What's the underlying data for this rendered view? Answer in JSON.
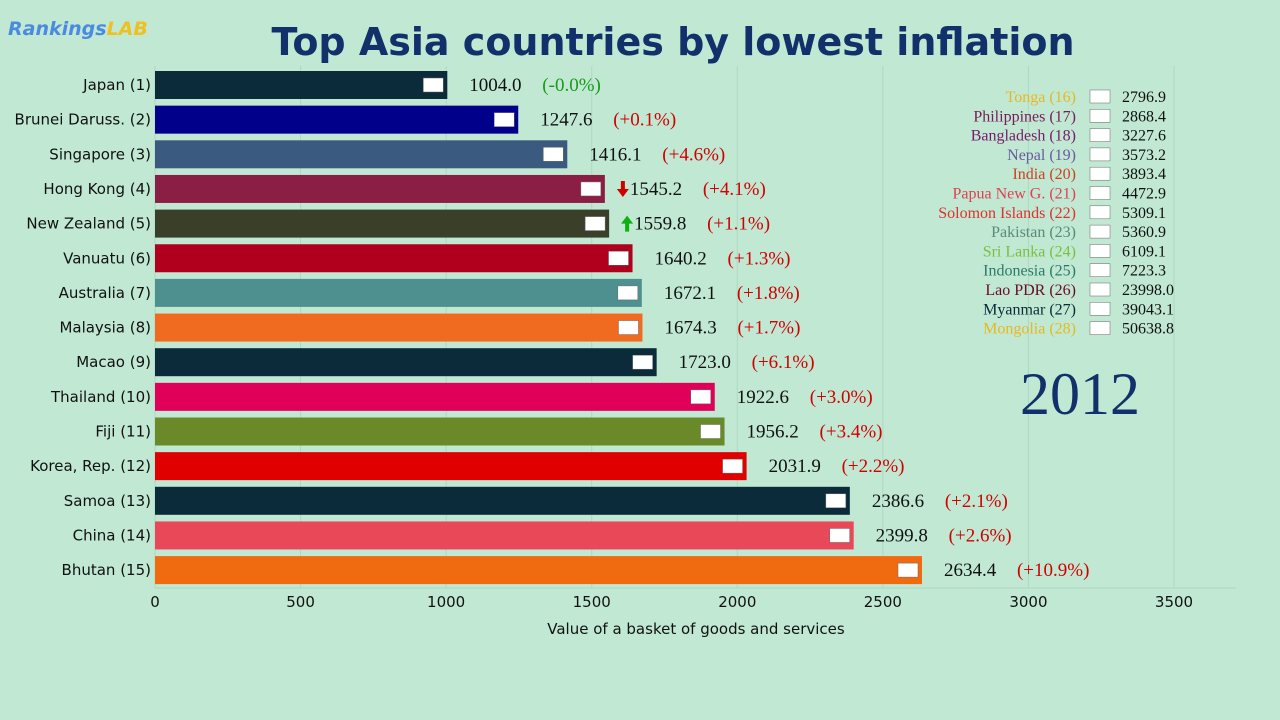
{
  "logo": {
    "part1": "Rankings",
    "part2": "LAB"
  },
  "chart_data": {
    "type": "bar",
    "orientation": "horizontal",
    "title": "Top Asia countries by lowest inflation",
    "xlabel": "Value of a basket of goods and services",
    "xlim": [
      0,
      3700
    ],
    "xticks": [
      0,
      500,
      1000,
      1500,
      2000,
      2500,
      3000,
      3500
    ],
    "grid": true,
    "year": "2012",
    "bars": [
      {
        "label": "Japan (1)",
        "value": 1004.0,
        "change": "(-0.0%)",
        "change_color": "#1a9a1a",
        "color": "#0b2a3a",
        "arrow": ""
      },
      {
        "label": "Brunei Daruss. (2)",
        "value": 1247.6,
        "change": "(+0.1%)",
        "change_color": "#d00000",
        "color": "#00008b",
        "arrow": ""
      },
      {
        "label": "Singapore (3)",
        "value": 1416.1,
        "change": "(+4.6%)",
        "change_color": "#d00000",
        "color": "#3a5a80",
        "arrow": ""
      },
      {
        "label": "Hong Kong (4)",
        "value": 1545.2,
        "change": "(+4.1%)",
        "change_color": "#d00000",
        "color": "#8b1e45",
        "arrow": "down"
      },
      {
        "label": "New Zealand (5)",
        "value": 1559.8,
        "change": "(+1.1%)",
        "change_color": "#d00000",
        "color": "#3a3f2a",
        "arrow": "up"
      },
      {
        "label": "Vanuatu (6)",
        "value": 1640.2,
        "change": "(+1.3%)",
        "change_color": "#d00000",
        "color": "#b0001e",
        "arrow": ""
      },
      {
        "label": "Australia (7)",
        "value": 1672.1,
        "change": "(+1.8%)",
        "change_color": "#d00000",
        "color": "#4e9090",
        "arrow": ""
      },
      {
        "label": "Malaysia (8)",
        "value": 1674.3,
        "change": "(+1.7%)",
        "change_color": "#d00000",
        "color": "#f06a20",
        "arrow": ""
      },
      {
        "label": "Macao (9)",
        "value": 1723.0,
        "change": "(+6.1%)",
        "change_color": "#d00000",
        "color": "#0b2a3a",
        "arrow": ""
      },
      {
        "label": "Thailand (10)",
        "value": 1922.6,
        "change": "(+3.0%)",
        "change_color": "#d00000",
        "color": "#e0005a",
        "arrow": ""
      },
      {
        "label": "Fiji (11)",
        "value": 1956.2,
        "change": "(+3.4%)",
        "change_color": "#d00000",
        "color": "#6a8a2a",
        "arrow": ""
      },
      {
        "label": "Korea, Rep. (12)",
        "value": 2031.9,
        "change": "(+2.2%)",
        "change_color": "#d00000",
        "color": "#e00000",
        "arrow": ""
      },
      {
        "label": "Samoa (13)",
        "value": 2386.6,
        "change": "(+2.1%)",
        "change_color": "#d00000",
        "color": "#0b2a3a",
        "arrow": ""
      },
      {
        "label": "China (14)",
        "value": 2399.8,
        "change": "(+2.6%)",
        "change_color": "#d00000",
        "color": "#e84858",
        "arrow": ""
      },
      {
        "label": "Bhutan (15)",
        "value": 2634.4,
        "change": "(+10.9%)",
        "change_color": "#d00000",
        "color": "#f06a10",
        "arrow": ""
      }
    ],
    "legend": [
      {
        "label": "Tonga (16)",
        "value": "2796.9",
        "color": "#e8b820"
      },
      {
        "label": "Philippines (17)",
        "value": "2868.4",
        "color": "#7a1a5a"
      },
      {
        "label": "Bangladesh (18)",
        "value": "3227.6",
        "color": "#7a1a6a"
      },
      {
        "label": "Nepal (19)",
        "value": "3573.2",
        "color": "#6a5aa0"
      },
      {
        "label": "India (20)",
        "value": "3893.4",
        "color": "#d04020"
      },
      {
        "label": "Papua New G. (21)",
        "value": "4472.9",
        "color": "#e04050"
      },
      {
        "label": "Solomon Islands (22)",
        "value": "5309.1",
        "color": "#e03030"
      },
      {
        "label": "Pakistan (23)",
        "value": "5360.9",
        "color": "#5a8a7a"
      },
      {
        "label": "Sri Lanka (24)",
        "value": "6109.1",
        "color": "#7ac040"
      },
      {
        "label": "Indonesia (25)",
        "value": "7223.3",
        "color": "#2a7a6a"
      },
      {
        "label": "Lao PDR (26)",
        "value": "23998.0",
        "color": "#6a0a2a"
      },
      {
        "label": "Myanmar (27)",
        "value": "39043.1",
        "color": "#0b2a3a"
      },
      {
        "label": "Mongolia (28)",
        "value": "50638.8",
        "color": "#e8b820"
      }
    ]
  }
}
